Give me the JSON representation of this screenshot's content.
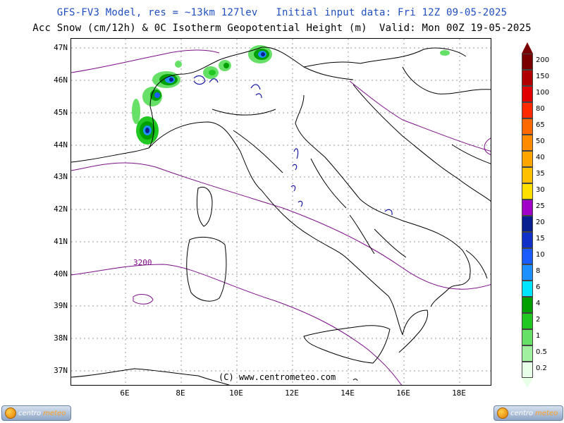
{
  "header": {
    "line1": "GFS-FV3 Model, res = ~13km 127lev   Initial input data: Fri 12Z 09-05-2025",
    "line2": "Acc Snow (cm/12h) & 0C Isotherm Geopotential Height (m)  Valid: Mon 00Z 19-05-2025"
  },
  "axes": {
    "lat_labels": [
      "47N",
      "46N",
      "45N",
      "44N",
      "43N",
      "42N",
      "41N",
      "40N",
      "39N",
      "38N",
      "37N"
    ],
    "lon_labels": [
      "6E",
      "8E",
      "10E",
      "12E",
      "14E",
      "16E",
      "18E"
    ],
    "lat_range": [
      36.6,
      47.3
    ],
    "lon_range": [
      4.2,
      19.2
    ]
  },
  "map": {
    "contour_label": "3200",
    "credit": "(C) www.centrometeo.com",
    "contour_color": "#7b0f86",
    "border_color": "#000000",
    "lake_color": "#1a1aa6"
  },
  "legend": {
    "labels": [
      "200",
      "150",
      "100",
      "80",
      "65",
      "50",
      "40",
      "35",
      "30",
      "25",
      "20",
      "15",
      "10",
      "8",
      "6",
      "4",
      "2",
      "1",
      "0.5",
      "0.2"
    ],
    "colors": [
      "#7a0000",
      "#b00000",
      "#e00000",
      "#ff2a00",
      "#ff6a00",
      "#ff8c00",
      "#ffa500",
      "#ffc000",
      "#ffe000",
      "#a000c8",
      "#0a1f8f",
      "#1030c8",
      "#1a5cff",
      "#1e90ff",
      "#00e5ff",
      "#00a000",
      "#22c822",
      "#66e066",
      "#a0f0a0",
      "#e8ffe8"
    ]
  },
  "logos": {
    "left_a": "centro",
    "left_b": "meteo",
    "right_a": "centro",
    "right_b": "meteo"
  }
}
